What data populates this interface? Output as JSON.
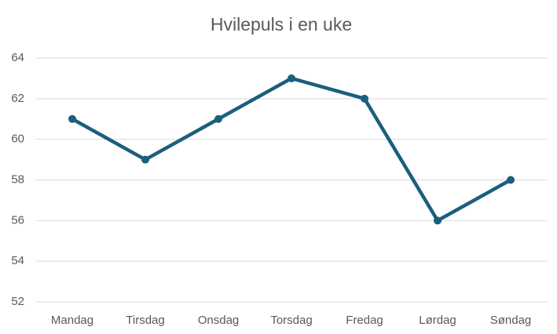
{
  "chart_data": {
    "type": "line",
    "title": "Hvilepuls i en uke",
    "categories": [
      "Mandag",
      "Tirsdag",
      "Onsdag",
      "Torsdag",
      "Fredag",
      "Lørdag",
      "Søndag"
    ],
    "values": [
      61,
      59,
      61,
      63,
      62,
      56,
      58
    ],
    "color": "#1b5e7e",
    "ylim": [
      52,
      64
    ],
    "yticks": [
      52,
      54,
      56,
      58,
      60,
      62,
      64
    ],
    "grid": true
  }
}
